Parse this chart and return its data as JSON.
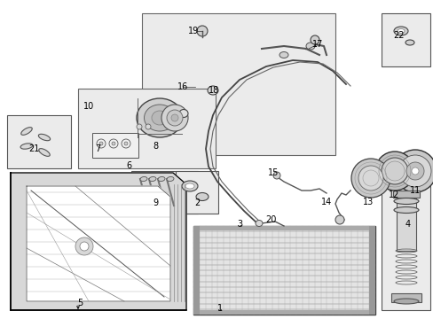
{
  "bg": "#ffffff",
  "fg": "#000000",
  "gray_fill": "#e8e8e8",
  "box_edge": "#555555",
  "part_numbers": [
    [
      "1",
      248,
      348,
      7
    ],
    [
      "2",
      222,
      229,
      7
    ],
    [
      "3",
      270,
      253,
      7
    ],
    [
      "4",
      460,
      253,
      7
    ],
    [
      "5",
      90,
      342,
      7
    ],
    [
      "6",
      145,
      187,
      7
    ],
    [
      "7",
      110,
      168,
      7
    ],
    [
      "8",
      175,
      165,
      7
    ],
    [
      "9",
      175,
      229,
      7
    ],
    [
      "10",
      100,
      120,
      7
    ],
    [
      "11",
      468,
      215,
      7
    ],
    [
      "12",
      444,
      220,
      7
    ],
    [
      "13",
      415,
      228,
      7
    ],
    [
      "14",
      368,
      228,
      7
    ],
    [
      "15",
      308,
      195,
      7
    ],
    [
      "16",
      206,
      98,
      7
    ],
    [
      "17",
      358,
      50,
      7
    ],
    [
      "18",
      241,
      102,
      7
    ],
    [
      "19",
      218,
      35,
      7
    ],
    [
      "20",
      305,
      248,
      7
    ],
    [
      "21",
      38,
      168,
      7
    ],
    [
      "22",
      450,
      40,
      7
    ]
  ]
}
